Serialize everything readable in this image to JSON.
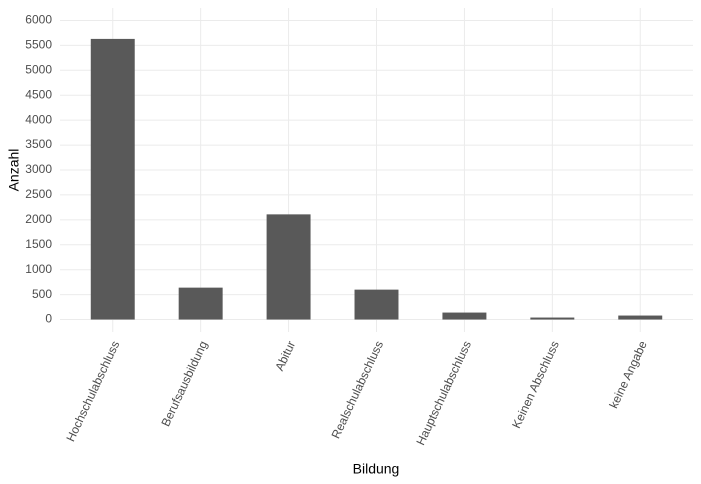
{
  "chart_data": {
    "type": "bar",
    "x_label": "Bildung",
    "y_label": "Anzahl",
    "categories": [
      "Hochschulabschluss",
      "Berufsausbildung",
      "Abitur",
      "Realschulabschluss",
      "Hauptschulabschluss",
      "Keinen Abschluss",
      "keine Angabe"
    ],
    "values": [
      5630,
      640,
      2110,
      600,
      140,
      40,
      80
    ],
    "color": "#595959",
    "ylim": [
      -250,
      6250
    ],
    "yticks": [
      0,
      500,
      1000,
      1500,
      2000,
      2500,
      3000,
      3500,
      4000,
      4500,
      5000,
      5500,
      6000
    ],
    "grid": true
  }
}
